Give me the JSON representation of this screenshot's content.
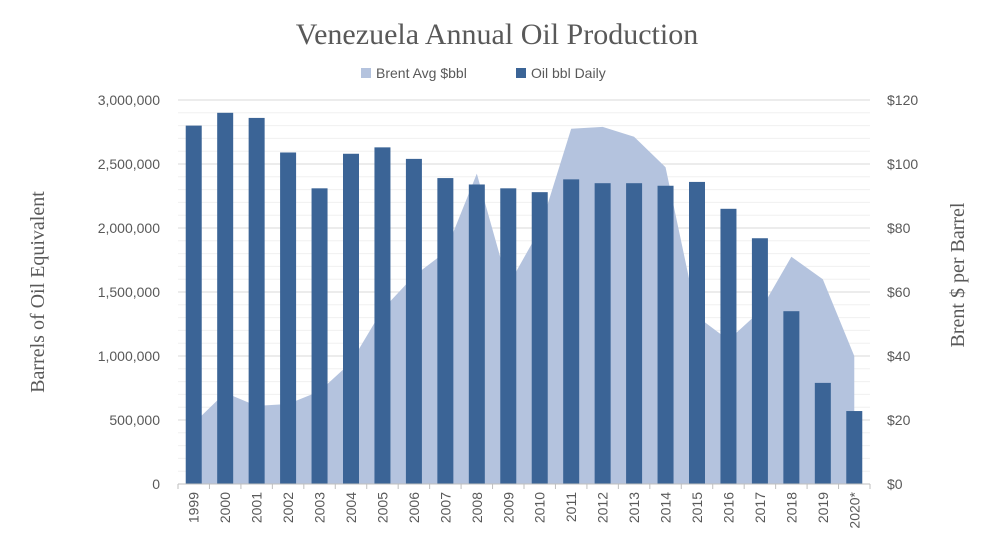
{
  "chart_data": {
    "type": "bar+area",
    "title": "Venezuela Annual Oil Production",
    "categories": [
      "1999",
      "2000",
      "2001",
      "2002",
      "2003",
      "2004",
      "2005",
      "2006",
      "2007",
      "2008",
      "2009",
      "2010",
      "2011",
      "2012",
      "2013",
      "2014",
      "2015",
      "2016",
      "2017",
      "2018",
      "2019",
      "2020*"
    ],
    "series": [
      {
        "name": "Brent Avg $bbl",
        "type": "area",
        "axis": "right",
        "color": "#b4c3de",
        "values": [
          19,
          28.5,
          24.4,
          25,
          29,
          38,
          54.5,
          65,
          72.5,
          97,
          62,
          79.5,
          111,
          111.6,
          108.5,
          99,
          52.4,
          45,
          54,
          71,
          64,
          40
        ]
      },
      {
        "name": "Oil bbl Daily",
        "type": "bar",
        "axis": "left",
        "color": "#3b6496",
        "values": [
          2800000,
          2900000,
          2860000,
          2590000,
          2310000,
          2580000,
          2630000,
          2540000,
          2390000,
          2340000,
          2310000,
          2280000,
          2380000,
          2350000,
          2350000,
          2330000,
          2360000,
          2150000,
          1920000,
          1350000,
          790000,
          570000
        ]
      }
    ],
    "ylabel": "Barrels of Oil Equivalent",
    "ylabel_right": "Brent $ per Barrel",
    "ylim": [
      0,
      3000000
    ],
    "ylim_right": [
      0,
      120
    ],
    "yticks": [
      "0",
      "500,000",
      "1,000,000",
      "1,500,000",
      "2,000,000",
      "2,500,000",
      "3,000,000"
    ],
    "yticks_right": [
      "$0",
      "$20",
      "$40",
      "$60",
      "$80",
      "$100",
      "$120"
    ],
    "grid": true,
    "legend": "top"
  }
}
